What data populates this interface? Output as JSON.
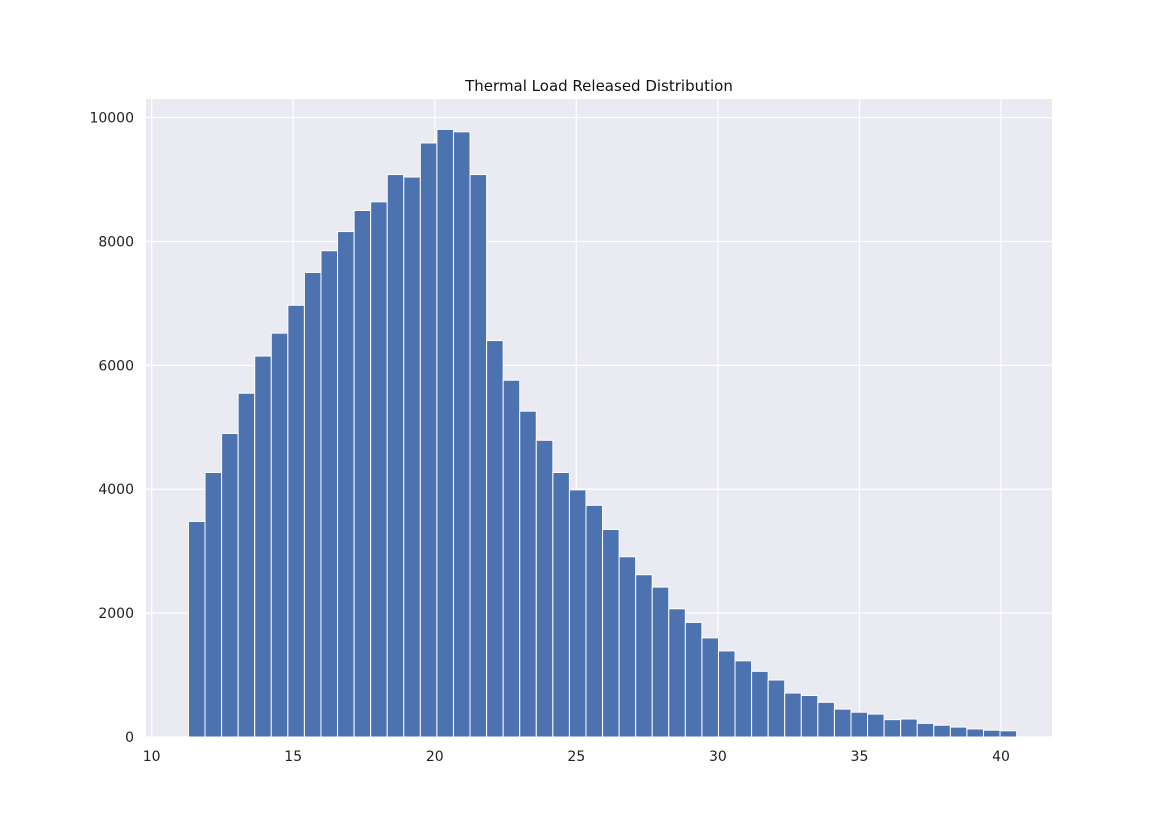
{
  "chart_data": {
    "type": "bar",
    "title": "Thermal Load Released Distribution",
    "xlabel": "",
    "ylabel": "",
    "xlim": [
      9.8,
      41.8
    ],
    "ylim": [
      0,
      10300
    ],
    "xticks": [
      10,
      15,
      20,
      25,
      30,
      35,
      40
    ],
    "xtick_labels": [
      "10",
      "15",
      "20",
      "25",
      "30",
      "35",
      "40"
    ],
    "yticks": [
      0,
      2000,
      4000,
      6000,
      8000,
      10000
    ],
    "ytick_labels": [
      "0",
      "2000",
      "4000",
      "6000",
      "8000",
      "10000"
    ],
    "grid": true,
    "legend": "none",
    "bin_start": 11.3,
    "bin_width": 0.585,
    "values": [
      3480,
      4270,
      4900,
      5550,
      6150,
      6520,
      6970,
      7500,
      7850,
      8160,
      8500,
      8640,
      9080,
      9040,
      9590,
      9810,
      9770,
      9080,
      6400,
      5760,
      5260,
      4790,
      4270,
      3990,
      3740,
      3350,
      2910,
      2620,
      2420,
      2070,
      1850,
      1600,
      1390,
      1230,
      1060,
      920,
      710,
      670,
      560,
      450,
      400,
      370,
      280,
      290,
      220,
      190,
      160,
      130,
      110,
      100
    ],
    "colors": {
      "bar": "#4c72b0",
      "background": "#eaeaf2",
      "grid": "#ffffff",
      "page": "#ffffff"
    }
  }
}
